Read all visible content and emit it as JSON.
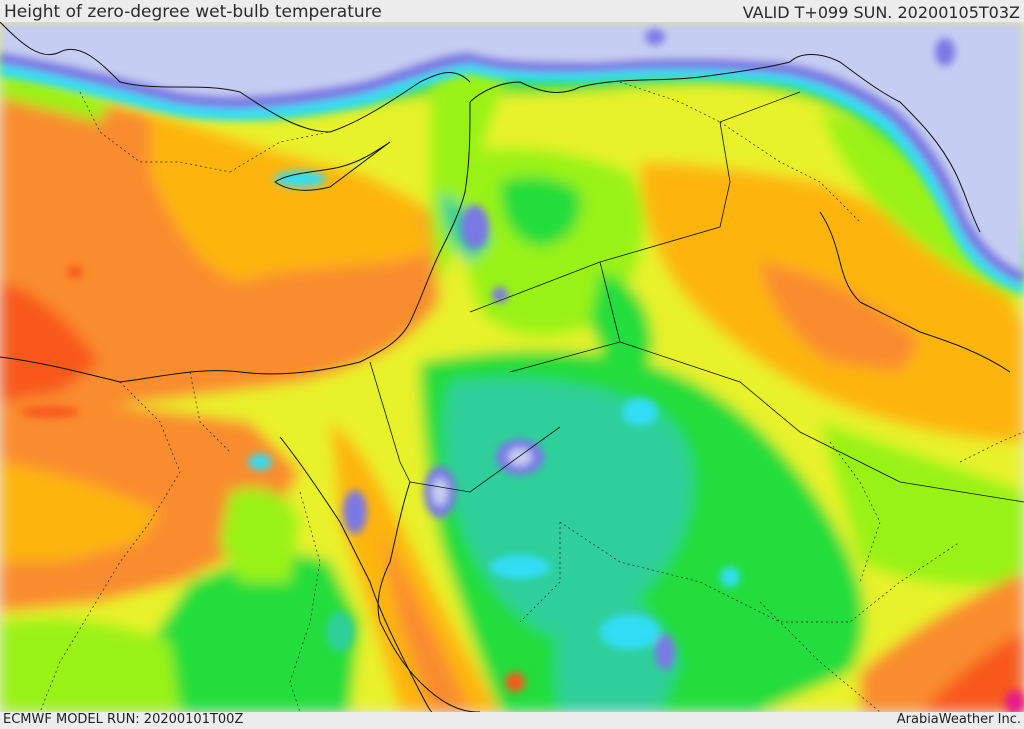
{
  "header": {
    "title": "Height of zero-degree wet-bulb temperature",
    "valid": "VALID T+099 SUN. 20200105T03Z"
  },
  "footer": {
    "model_run": "ECMWF MODEL RUN: 20200101T00Z",
    "credit": "ArabiaWeather Inc."
  },
  "colors": {
    "sea_ice": "#c6cdf2",
    "very_low": "#7a78e4",
    "low_cyan": "#33ddf5",
    "teal": "#2dcf9a",
    "green": "#22dd3a",
    "light_green": "#99f218",
    "yellow": "#e8f22a",
    "amber": "#fdb511",
    "orange": "#f98c2d",
    "red_orange": "#f8581e",
    "magenta": "#e61e8c"
  }
}
